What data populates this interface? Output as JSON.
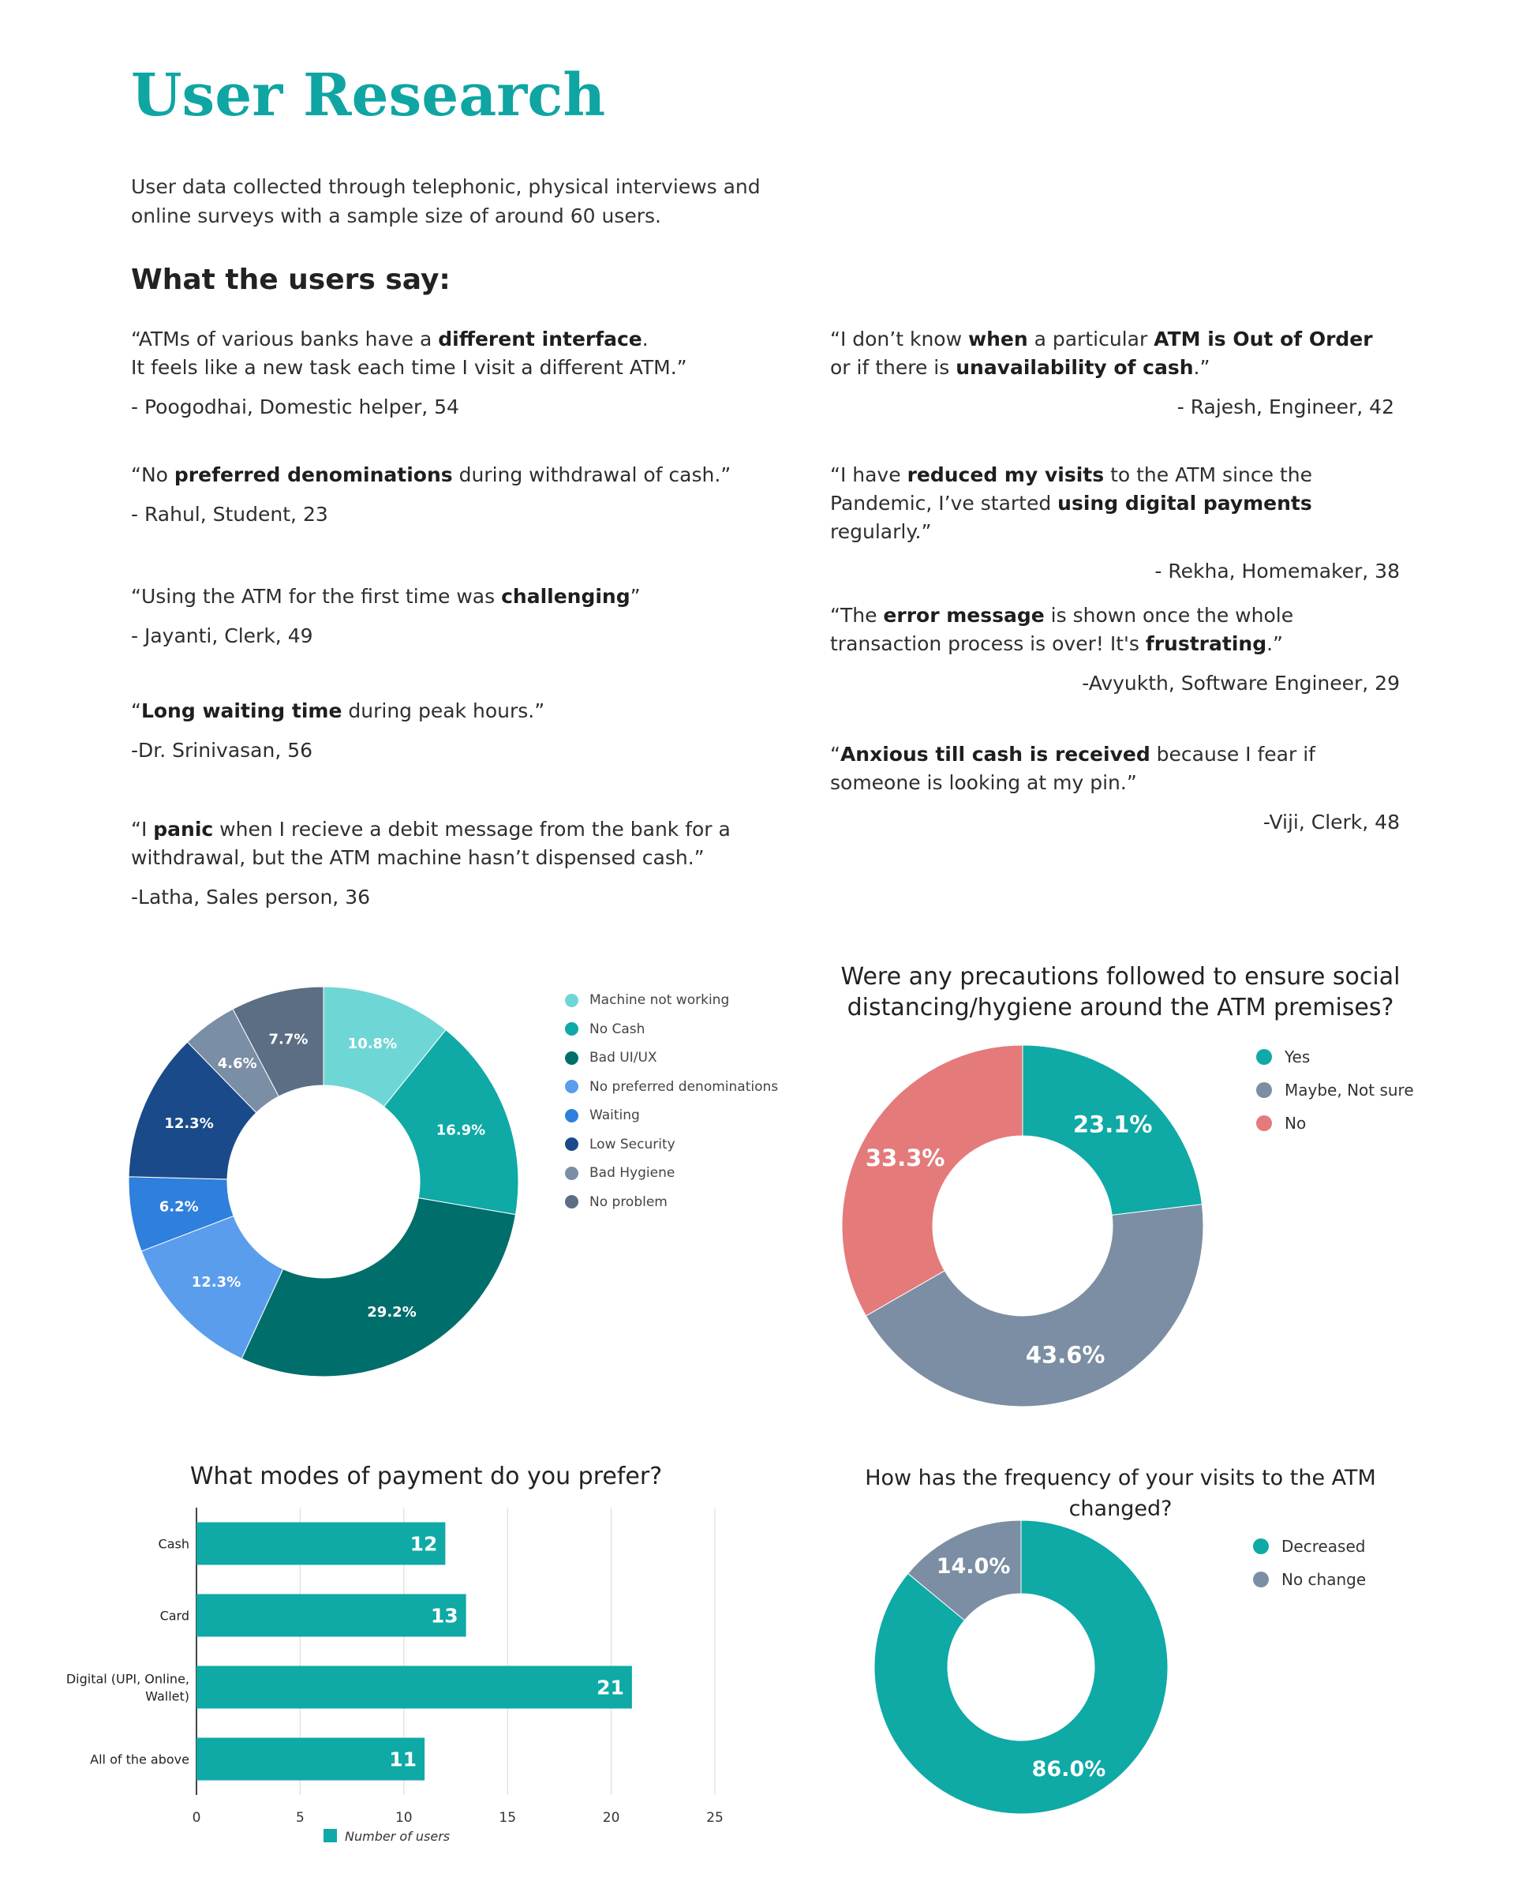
{
  "page": {
    "title": "User Research",
    "intro": "User data collected through telephonic, physical interviews and online surveys with a sample size of around 60 users.",
    "users_heading": "What the users say:"
  },
  "quotes_left": [
    {
      "parts": [
        {
          "t": "“ATMs of various banks have a "
        },
        {
          "t": "different interface",
          "b": true
        },
        {
          "t": ".\nIt feels like a new task each time I visit a different ATM.”"
        }
      ],
      "author": "- Poogodhai, Domestic helper, 54"
    },
    {
      "parts": [
        {
          "t": "“No "
        },
        {
          "t": "preferred denominations",
          "b": true
        },
        {
          "t": " during withdrawal of cash.”"
        }
      ],
      "author": "- Rahul, Student, 23"
    },
    {
      "parts": [
        {
          "t": "“Using the ATM for the first time was "
        },
        {
          "t": "challenging",
          "b": true
        },
        {
          "t": "”"
        }
      ],
      "author": "- Jayanti, Clerk, 49"
    },
    {
      "parts": [
        {
          "t": "“"
        },
        {
          "t": "Long waiting time",
          "b": true
        },
        {
          "t": " during peak hours.”"
        }
      ],
      "author": "-Dr. Srinivasan, 56"
    },
    {
      "parts": [
        {
          "t": "“I "
        },
        {
          "t": "panic",
          "b": true
        },
        {
          "t": " when I recieve a debit message from the bank for a withdrawal, but the ATM machine hasn’t dispensed cash.”"
        }
      ],
      "author": "-Latha, Sales person, 36"
    }
  ],
  "quotes_right": [
    {
      "parts": [
        {
          "t": "“I don’t know "
        },
        {
          "t": "when",
          "b": true
        },
        {
          "t": " a particular "
        },
        {
          "t": "ATM is Out of Order",
          "b": true
        },
        {
          "t": " or if there is "
        },
        {
          "t": "unavailability of cash",
          "b": true
        },
        {
          "t": ".”"
        }
      ],
      "author": "- Rajesh, Engineer, 42"
    },
    {
      "parts": [
        {
          "t": "“I have "
        },
        {
          "t": "reduced my visits",
          "b": true
        },
        {
          "t": " to the ATM since the Pandemic, I’ve started "
        },
        {
          "t": "using digital payments",
          "b": true
        },
        {
          "t": " regularly.”"
        }
      ],
      "author": "- Rekha, Homemaker, 38"
    },
    {
      "parts": [
        {
          "t": "“The "
        },
        {
          "t": "error message",
          "b": true
        },
        {
          "t": " is shown once the whole transaction process is over! It's "
        },
        {
          "t": "frustrating",
          "b": true
        },
        {
          "t": ".”"
        }
      ],
      "author": "-Avyukth, Software Engineer, 29"
    },
    {
      "parts": [
        {
          "t": "“"
        },
        {
          "t": "Anxious till cash is received",
          "b": true
        },
        {
          "t": " because I fear if someone is looking at my pin.”"
        }
      ],
      "author": "-Viji, Clerk, 48"
    }
  ],
  "chart_data": [
    {
      "type": "pie",
      "title": "",
      "donut": true,
      "categories": [
        "Machine not working",
        "No Cash",
        "Bad UI/UX",
        "No preferred denominations",
        "Waiting",
        "Low Security",
        "Bad Hygiene",
        "No problem"
      ],
      "values": [
        10.8,
        16.9,
        29.2,
        12.3,
        6.2,
        12.3,
        4.6,
        7.7
      ],
      "labels": [
        "10.8%",
        "16.9%",
        "29.2%",
        "12.3%",
        "6.2%",
        "12.3%",
        "4.6%",
        "7.7%"
      ],
      "colors": [
        "#6fd6d6",
        "#0fa9a6",
        "#006e6b",
        "#5b9ded",
        "#2f7fdc",
        "#1b4a8a",
        "#7a8ea5",
        "#5b6e84"
      ],
      "legend": "right"
    },
    {
      "type": "pie",
      "title": "Were any precautions followed to ensure social distancing/hygiene around the ATM premises?",
      "donut": true,
      "categories": [
        "Yes",
        "Maybe, Not sure",
        "No"
      ],
      "values": [
        23.1,
        43.6,
        33.3
      ],
      "labels": [
        "23.1%",
        "43.6%",
        "33.3%"
      ],
      "colors": [
        "#0fa9a6",
        "#7b8ea3",
        "#e57a7a"
      ],
      "legend": "right"
    },
    {
      "type": "bar",
      "orientation": "horizontal",
      "title": "What modes of payment do you prefer?",
      "categories": [
        "Cash",
        "Card",
        "Digital (UPI, Online,\nWallet)",
        "All of the above"
      ],
      "series": [
        {
          "name": "Number of users",
          "values": [
            12,
            13,
            21,
            11
          ]
        }
      ],
      "xlim": [
        0,
        25
      ],
      "xticks": [
        0,
        5,
        10,
        15,
        20,
        25
      ],
      "colors": [
        "#0fa9a6"
      ],
      "grid": true,
      "legend": "bottom"
    },
    {
      "type": "pie",
      "title": "How has the frequency of your visits to the ATM changed?",
      "donut": true,
      "categories": [
        "Decreased",
        "No change"
      ],
      "values": [
        86.0,
        14.0
      ],
      "labels": [
        "86.0%",
        "14.0%"
      ],
      "colors": [
        "#0fa9a6",
        "#7b8ea3"
      ],
      "legend": "right"
    }
  ]
}
